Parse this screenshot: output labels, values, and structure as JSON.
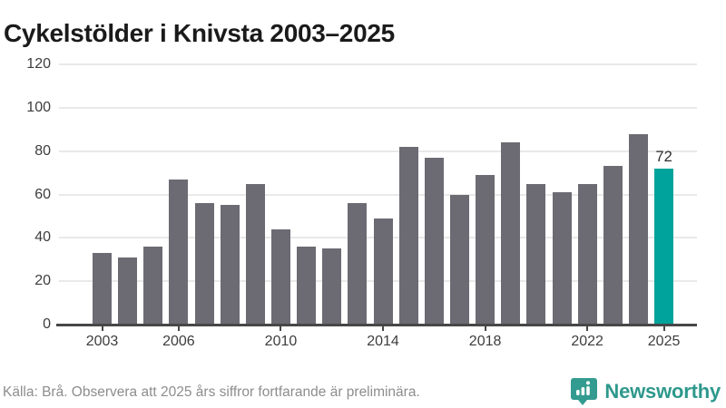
{
  "header": {
    "title": "Cykelstölder i Knivsta 2003–2025"
  },
  "chart_data": {
    "type": "bar",
    "title": "Cykelstölder i Knivsta 2003–2025",
    "categories": [
      "2003",
      "2004",
      "2005",
      "2006",
      "2007",
      "2008",
      "2009",
      "2010",
      "2011",
      "2012",
      "2013",
      "2014",
      "2015",
      "2016",
      "2017",
      "2018",
      "2019",
      "2020",
      "2021",
      "2022",
      "2023",
      "2024",
      "2025"
    ],
    "values": [
      33,
      31,
      36,
      67,
      56,
      55,
      65,
      44,
      36,
      35,
      56,
      49,
      82,
      77,
      60,
      69,
      84,
      65,
      61,
      65,
      73,
      88,
      72
    ],
    "highlight": {
      "category": "2025",
      "value": 72,
      "label": "72"
    },
    "ylim": [
      0,
      120
    ],
    "yticks": [
      0,
      20,
      40,
      60,
      80,
      100,
      120
    ],
    "xtick_labels": [
      "2003",
      "2006",
      "2010",
      "2014",
      "2018",
      "2022",
      "2025"
    ],
    "grid": true,
    "legend": "none",
    "colors": {
      "bar": "#6c6b73",
      "highlight": "#00a39b"
    }
  },
  "footer": {
    "source_note": "Källa: Brå. Observera att 2025 års siffror fortfarande är preliminära.",
    "brand_name": "Newsworthy",
    "brand_color": "#2e988c",
    "brand_icon": "newsworthy-speech-bubble-barchart"
  }
}
